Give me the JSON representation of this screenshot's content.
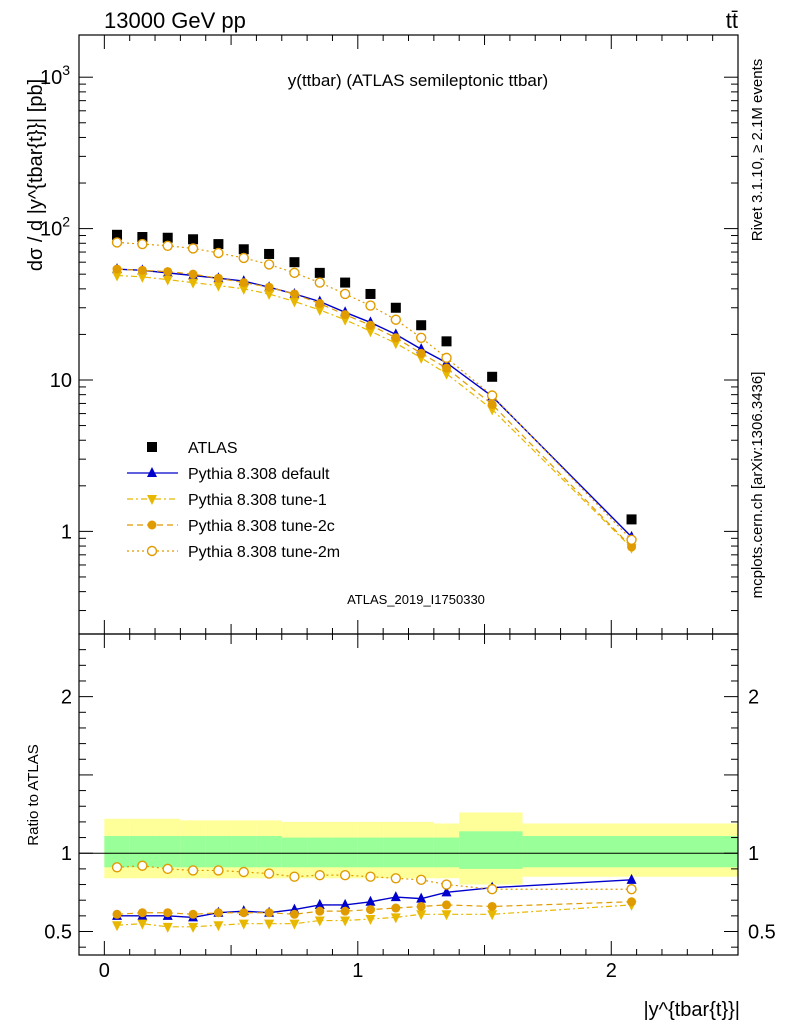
{
  "header": {
    "energy_label": "13000 GeV pp",
    "process_label": "tt̄",
    "rivet_label": "Rivet 3.1.10, ≥ 2.1M events",
    "mcplots_label": "mcplots.cern.ch [arXiv:1306.3436]"
  },
  "chart_data": [
    {
      "type": "scatter",
      "title": "y(ttbar) (ATLAS semileptonic ttbar)",
      "analysis_label": "ATLAS_2019_I1750330",
      "ylabel": "dσ / d |y^{tbar{t}}| [pb]",
      "yscale": "log",
      "ylim": [
        0.21,
        1900
      ],
      "xlim": [
        -0.1,
        2.5
      ],
      "y_tick_labels": [
        "1",
        "10",
        "10^2",
        "10^3"
      ],
      "legend_position": "lower-left",
      "x": [
        0.05,
        0.15,
        0.25,
        0.35,
        0.45,
        0.55,
        0.65,
        0.75,
        0.85,
        0.95,
        1.05,
        1.15,
        1.25,
        1.35,
        1.53,
        2.08
      ],
      "series": [
        {
          "name": "ATLAS",
          "marker": "square",
          "color": "#000000",
          "values": [
            91,
            88,
            87,
            85,
            79,
            73,
            68,
            60,
            51,
            44,
            37,
            30,
            23,
            18,
            10.5,
            1.2
          ]
        },
        {
          "name": "Pythia 8.308 default",
          "marker": "triangle-up",
          "color": "#0000cc",
          "line": "solid",
          "values": [
            54,
            53,
            51,
            49,
            47,
            45,
            41,
            37,
            33,
            28,
            24,
            20,
            16,
            13,
            7.8,
            0.92
          ]
        },
        {
          "name": "Pythia 8.308 tune-1",
          "marker": "triangle-down",
          "color": "#e8b800",
          "line": "dashdot",
          "values": [
            49,
            48,
            46,
            44,
            42,
            40,
            37,
            33,
            29,
            25,
            21,
            17.5,
            14,
            11,
            6.4,
            0.78
          ]
        },
        {
          "name": "Pythia 8.308 tune-2c",
          "marker": "circle-filled",
          "color": "#e09b00",
          "line": "dashed",
          "values": [
            54,
            53,
            52,
            50,
            47,
            44,
            41,
            37,
            32,
            27,
            23,
            19,
            15,
            12,
            6.9,
            0.79
          ]
        },
        {
          "name": "Pythia 8.308 tune-2m",
          "marker": "circle-open",
          "color": "#e09b00",
          "line": "dotted",
          "values": [
            81,
            79,
            77,
            74,
            69,
            64,
            58,
            51,
            44,
            37,
            31,
            25,
            19,
            14,
            7.9,
            0.88
          ]
        }
      ]
    },
    {
      "type": "line",
      "ylabel": "Ratio to ATLAS",
      "xlabel": "|y^{tbar{t}}|",
      "ylim": [
        0.35,
        2.4
      ],
      "xlim": [
        -0.1,
        2.5
      ],
      "x_tick_labels": [
        "0",
        "1",
        "2"
      ],
      "y_tick_labels": [
        "0.5",
        "1",
        "2"
      ],
      "bands": {
        "edges": [
          0.0,
          0.1,
          0.2,
          0.3,
          0.4,
          0.5,
          0.6,
          0.7,
          0.8,
          0.9,
          1.0,
          1.1,
          1.2,
          1.3,
          1.4,
          1.65,
          2.5
        ],
        "yellow_low": [
          0.84,
          0.84,
          0.84,
          0.84,
          0.84,
          0.84,
          0.84,
          0.84,
          0.84,
          0.84,
          0.84,
          0.84,
          0.84,
          0.84,
          0.8,
          0.85
        ],
        "yellow_high": [
          1.22,
          1.22,
          1.22,
          1.21,
          1.21,
          1.21,
          1.21,
          1.2,
          1.2,
          1.2,
          1.2,
          1.2,
          1.2,
          1.19,
          1.26,
          1.19
        ],
        "green_low": [
          0.91,
          0.91,
          0.91,
          0.91,
          0.91,
          0.91,
          0.91,
          0.91,
          0.91,
          0.91,
          0.91,
          0.91,
          0.91,
          0.91,
          0.9,
          0.91
        ],
        "green_high": [
          1.11,
          1.11,
          1.11,
          1.11,
          1.11,
          1.11,
          1.11,
          1.1,
          1.1,
          1.1,
          1.1,
          1.1,
          1.1,
          1.1,
          1.14,
          1.11
        ]
      },
      "x": [
        0.05,
        0.15,
        0.25,
        0.35,
        0.45,
        0.55,
        0.65,
        0.75,
        0.85,
        0.95,
        1.05,
        1.15,
        1.25,
        1.35,
        1.53,
        2.08
      ],
      "series": [
        {
          "name": "Pythia 8.308 default",
          "marker": "triangle-up",
          "color": "#0000cc",
          "line": "solid",
          "values": [
            0.6,
            0.6,
            0.6,
            0.59,
            0.62,
            0.63,
            0.62,
            0.64,
            0.67,
            0.67,
            0.69,
            0.72,
            0.71,
            0.75,
            0.78,
            0.83
          ]
        },
        {
          "name": "Pythia 8.308 tune-1",
          "marker": "triangle-down",
          "color": "#e8b800",
          "line": "dashdot",
          "values": [
            0.54,
            0.55,
            0.53,
            0.53,
            0.54,
            0.55,
            0.55,
            0.55,
            0.57,
            0.57,
            0.58,
            0.59,
            0.61,
            0.61,
            0.61,
            0.67
          ]
        },
        {
          "name": "Pythia 8.308 tune-2c",
          "marker": "circle-filled",
          "color": "#e09b00",
          "line": "dashed",
          "values": [
            0.61,
            0.62,
            0.62,
            0.61,
            0.62,
            0.62,
            0.62,
            0.61,
            0.63,
            0.63,
            0.64,
            0.65,
            0.66,
            0.67,
            0.66,
            0.69
          ]
        },
        {
          "name": "Pythia 8.308 tune-2m",
          "marker": "circle-open",
          "color": "#e09b00",
          "line": "dotted",
          "values": [
            0.91,
            0.92,
            0.9,
            0.89,
            0.89,
            0.88,
            0.87,
            0.85,
            0.86,
            0.86,
            0.85,
            0.84,
            0.83,
            0.8,
            0.77,
            0.77
          ]
        }
      ]
    }
  ]
}
